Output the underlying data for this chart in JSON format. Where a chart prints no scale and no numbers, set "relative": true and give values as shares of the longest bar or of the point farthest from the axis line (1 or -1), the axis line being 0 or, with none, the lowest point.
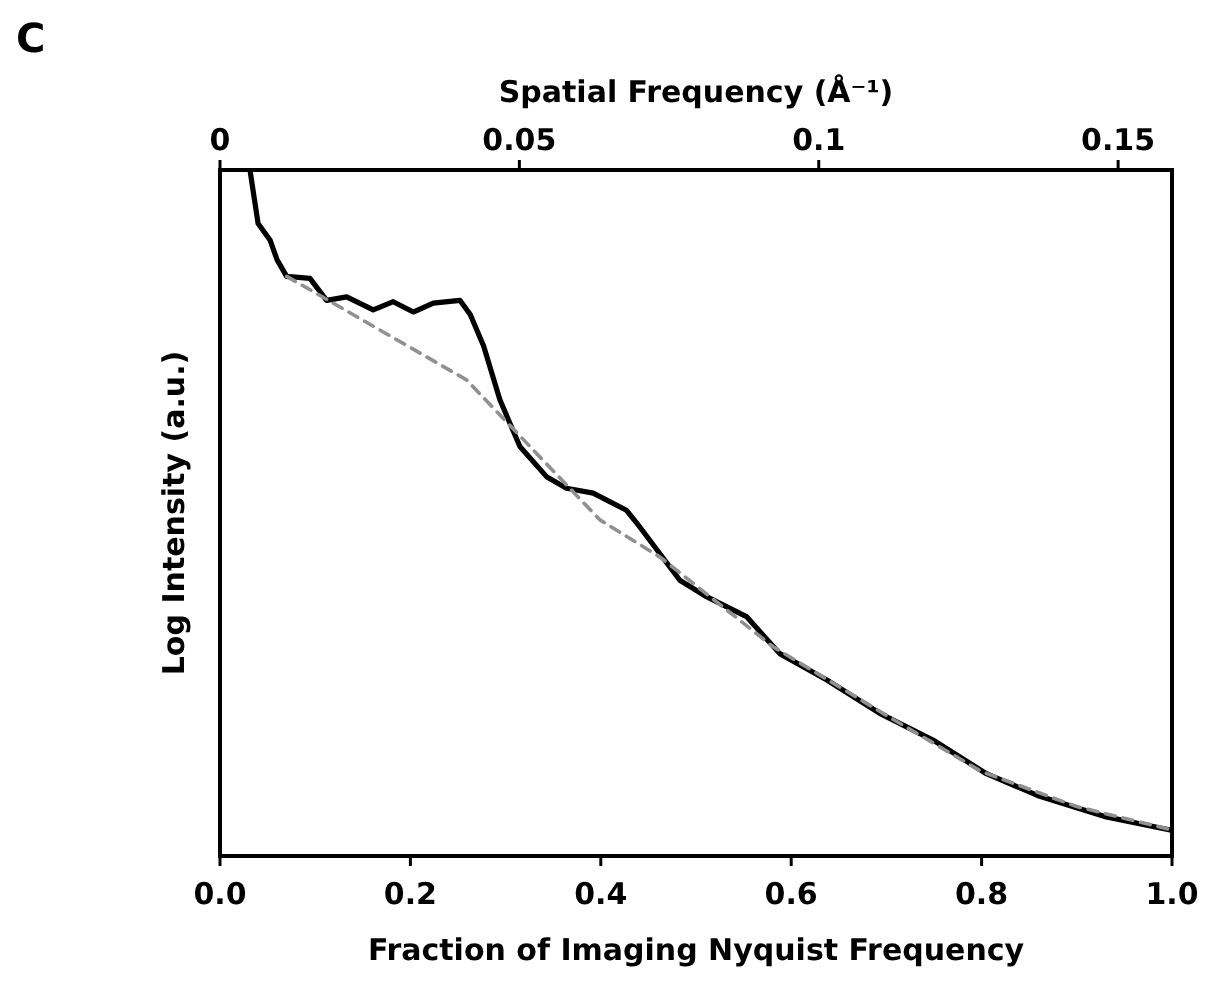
{
  "chart_data": {
    "type": "line",
    "title": "C",
    "xlabel": "Fraction of Imaging Nyquist Frequency",
    "ylabel": "Log Intensity (a.u.)",
    "x2label": "Spatial Frequency (Å⁻¹)",
    "relative": true,
    "xlim": [
      0,
      1
    ],
    "xticks": [
      {
        "value": 0,
        "label": "0.0"
      },
      {
        "value": 0.2,
        "label": "0.2"
      },
      {
        "value": 0.4,
        "label": "0.4"
      },
      {
        "value": 0.6,
        "label": "0.6"
      },
      {
        "value": 0.8,
        "label": "0.8"
      },
      {
        "value": 1,
        "label": "1.0"
      }
    ],
    "x2lim": [
      0,
      0.159
    ],
    "x2ticks": [
      0,
      0.05,
      0.1,
      0.15
    ],
    "grid": false,
    "marker": "none",
    "series": [
      {
        "color": "#000000",
        "line_style": "solid",
        "x": [
          0.0315,
          0.04,
          0.0525,
          0.06,
          0.07,
          0.0945,
          0.112,
          0.133,
          0.161,
          0.182,
          0.203,
          0.224,
          0.252,
          0.263,
          0.277,
          0.294,
          0.315,
          0.343,
          0.364,
          0.392,
          0.427,
          0.438,
          0.483,
          0.511,
          0.553,
          0.588,
          0.637,
          0.693,
          0.749,
          0.805,
          0.861,
          0.931,
          0.998
        ],
        "values": [
          1.0,
          0.922,
          0.898,
          0.869,
          0.845,
          0.842,
          0.81,
          0.815,
          0.796,
          0.808,
          0.793,
          0.806,
          0.81,
          0.789,
          0.743,
          0.665,
          0.597,
          0.553,
          0.536,
          0.529,
          0.504,
          0.485,
          0.402,
          0.378,
          0.349,
          0.295,
          0.257,
          0.208,
          0.169,
          0.12,
          0.087,
          0.057,
          0.038
        ]
      },
      {
        "color": "#909090",
        "line_style": "dashed",
        "x": [
          0.07,
          0.259,
          0.399,
          0.462,
          0.581,
          0.7,
          0.8,
          0.9,
          1.0
        ],
        "values": [
          0.845,
          0.694,
          0.49,
          0.436,
          0.305,
          0.205,
          0.123,
          0.072,
          0.038
        ]
      }
    ]
  }
}
